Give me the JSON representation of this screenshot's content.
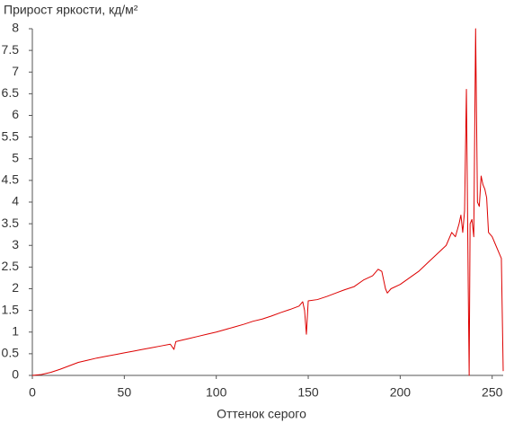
{
  "chart_data": {
    "type": "line",
    "title": "Прирост яркости, кд/м²",
    "x_label": "Оттенок серого",
    "x": [
      0,
      5,
      10,
      15,
      20,
      25,
      30,
      35,
      40,
      45,
      50,
      55,
      60,
      65,
      70,
      75,
      77,
      78,
      80,
      85,
      90,
      95,
      100,
      105,
      110,
      115,
      120,
      125,
      130,
      135,
      140,
      145,
      147,
      148,
      149,
      150,
      155,
      160,
      165,
      170,
      175,
      180,
      185,
      188,
      190,
      192,
      193,
      195,
      200,
      205,
      210,
      215,
      220,
      225,
      228,
      230,
      232,
      233,
      234,
      235,
      236,
      237,
      237.5,
      238,
      239,
      240,
      241,
      242,
      243,
      244,
      245,
      246,
      247,
      248,
      250,
      252,
      254,
      255,
      256
    ],
    "series": [
      {
        "name": "Прирост яркости",
        "color": "#dd0000",
        "values": [
          0,
          0.02,
          0.07,
          0.14,
          0.22,
          0.3,
          0.35,
          0.4,
          0.44,
          0.48,
          0.52,
          0.56,
          0.6,
          0.64,
          0.68,
          0.72,
          0.6,
          0.78,
          0.8,
          0.85,
          0.9,
          0.95,
          1.0,
          1.06,
          1.12,
          1.18,
          1.25,
          1.3,
          1.37,
          1.45,
          1.52,
          1.6,
          1.7,
          1.5,
          0.95,
          1.72,
          1.75,
          1.82,
          1.9,
          1.98,
          2.05,
          2.2,
          2.3,
          2.45,
          2.4,
          2.0,
          1.9,
          2.0,
          2.1,
          2.25,
          2.4,
          2.6,
          2.8,
          3.0,
          3.3,
          3.2,
          3.5,
          3.7,
          3.3,
          3.8,
          6.6,
          2.0,
          0,
          3.5,
          3.6,
          3.2,
          8.0,
          4.0,
          3.9,
          4.6,
          4.4,
          4.3,
          4.1,
          3.3,
          3.2,
          3.0,
          2.8,
          2.7,
          0.1
        ]
      }
    ],
    "xlim": [
      0,
      256
    ],
    "xticks": [
      0,
      50,
      100,
      150,
      200,
      250
    ],
    "ylim": [
      0,
      8
    ],
    "yticks": [
      0,
      0.5,
      1,
      1.5,
      2,
      2.5,
      3,
      3.5,
      4,
      4.5,
      5,
      5.5,
      6,
      6.5,
      7,
      7.5,
      8
    ],
    "grid": false
  }
}
